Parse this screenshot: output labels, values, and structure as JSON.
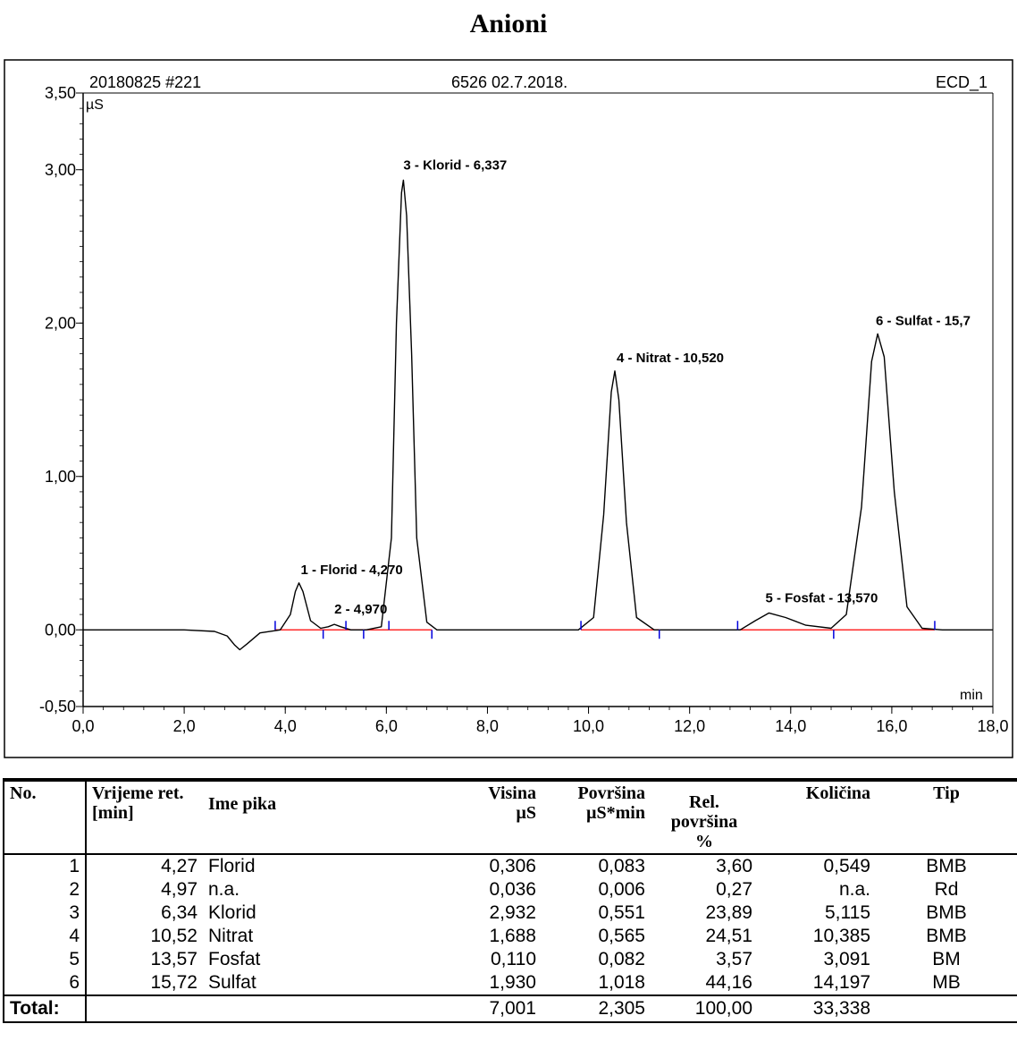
{
  "page_title": "Anioni",
  "chart_header": {
    "left": "20180825 #221",
    "center": "6526 02.7.2018.",
    "right": "ECD_1"
  },
  "chart_data": {
    "type": "line",
    "title": "",
    "xlabel": "min",
    "ylabel": "µS",
    "xlim": [
      0,
      18
    ],
    "ylim": [
      -0.5,
      3.5
    ],
    "x_ticks": [
      "0,0",
      "2,0",
      "4,0",
      "6,0",
      "8,0",
      "10,0",
      "12,0",
      "14,0",
      "16,0",
      "18,0"
    ],
    "y_ticks": [
      "-0,50",
      "0,00",
      "1,00",
      "2,00",
      "3,00",
      "3,50"
    ],
    "series": [
      {
        "x": [
          0.0,
          2.0,
          2.6,
          2.85,
          3.0,
          3.1,
          3.25,
          3.5,
          3.9,
          4.1,
          4.2,
          4.27,
          4.35,
          4.5,
          4.7,
          4.85,
          4.97,
          5.1,
          5.3,
          5.6,
          5.9,
          6.1,
          6.2,
          6.3,
          6.337,
          6.4,
          6.5,
          6.6,
          6.8,
          7.0,
          8.0,
          9.8,
          10.1,
          10.3,
          10.45,
          10.52,
          10.6,
          10.75,
          10.95,
          11.3,
          12.0,
          13.0,
          13.3,
          13.57,
          13.9,
          14.3,
          14.8,
          15.1,
          15.4,
          15.6,
          15.72,
          15.85,
          16.05,
          16.3,
          16.6,
          17.0,
          18.0
        ],
        "y": [
          0.0,
          0.0,
          -0.01,
          -0.04,
          -0.1,
          -0.13,
          -0.09,
          -0.02,
          0.0,
          0.1,
          0.25,
          0.306,
          0.25,
          0.06,
          0.01,
          0.02,
          0.036,
          0.02,
          0.0,
          0.0,
          0.02,
          0.6,
          2.0,
          2.85,
          2.932,
          2.7,
          1.8,
          0.6,
          0.05,
          0.0,
          0.0,
          0.0,
          0.08,
          0.75,
          1.55,
          1.688,
          1.5,
          0.7,
          0.08,
          0.0,
          0.0,
          0.0,
          0.06,
          0.11,
          0.08,
          0.03,
          0.01,
          0.1,
          0.8,
          1.75,
          1.93,
          1.78,
          0.9,
          0.15,
          0.01,
          0.0,
          0.0
        ],
        "color": "#000000"
      }
    ],
    "baseline_color": "#ff0000",
    "peak_labels": [
      {
        "text": "1 - Florid - 4,270",
        "x": 4.27,
        "y": 0.306
      },
      {
        "text": "2 - 4,970",
        "x": 4.97,
        "y": 0.036
      },
      {
        "text": "3 - Klorid - 6,337",
        "x": 6.337,
        "y": 2.932
      },
      {
        "text": "4 - Nitrat - 10,520",
        "x": 10.52,
        "y": 1.688
      },
      {
        "text": "5 - Fosfat - 13,570",
        "x": 13.57,
        "y": 0.11
      },
      {
        "text": "6 - Sulfat - 15,7",
        "x": 15.72,
        "y": 1.93
      }
    ],
    "integration_marks": [
      3.8,
      4.75,
      5.2,
      5.55,
      6.05,
      6.9,
      9.85,
      11.4,
      12.95,
      14.85,
      16.85
    ]
  },
  "table": {
    "headers": [
      {
        "line1": "No.",
        "line2": ""
      },
      {
        "line1": "Vrijeme ret.",
        "line2": "[min]"
      },
      {
        "line1": "Ime pika",
        "line2": ""
      },
      {
        "line1": "Visina",
        "line2": "µS"
      },
      {
        "line1": "Površina",
        "line2": "µS*min"
      },
      {
        "line1": "Rel. površina",
        "line2": "%"
      },
      {
        "line1": "Količina",
        "line2": ""
      },
      {
        "line1": "Tip",
        "line2": ""
      }
    ],
    "rows": [
      {
        "no": "1",
        "rt": "4,27",
        "name": "Florid",
        "height": "0,306",
        "area": "0,083",
        "rel": "3,60",
        "amount": "0,549",
        "type": "BMB"
      },
      {
        "no": "2",
        "rt": "4,97",
        "name": "n.a.",
        "height": "0,036",
        "area": "0,006",
        "rel": "0,27",
        "amount": "n.a.",
        "type": "Rd"
      },
      {
        "no": "3",
        "rt": "6,34",
        "name": "Klorid",
        "height": "2,932",
        "area": "0,551",
        "rel": "23,89",
        "amount": "5,115",
        "type": "BMB"
      },
      {
        "no": "4",
        "rt": "10,52",
        "name": "Nitrat",
        "height": "1,688",
        "area": "0,565",
        "rel": "24,51",
        "amount": "10,385",
        "type": "BMB"
      },
      {
        "no": "5",
        "rt": "13,57",
        "name": "Fosfat",
        "height": "0,110",
        "area": "0,082",
        "rel": "3,57",
        "amount": "3,091",
        "type": "BM"
      },
      {
        "no": "6",
        "rt": "15,72",
        "name": "Sulfat",
        "height": "1,930",
        "area": "1,018",
        "rel": "44,16",
        "amount": "14,197",
        "type": "MB"
      }
    ],
    "total": {
      "label": "Total:",
      "height": "7,001",
      "area": "2,305",
      "rel": "100,00",
      "amount": "33,338"
    }
  }
}
